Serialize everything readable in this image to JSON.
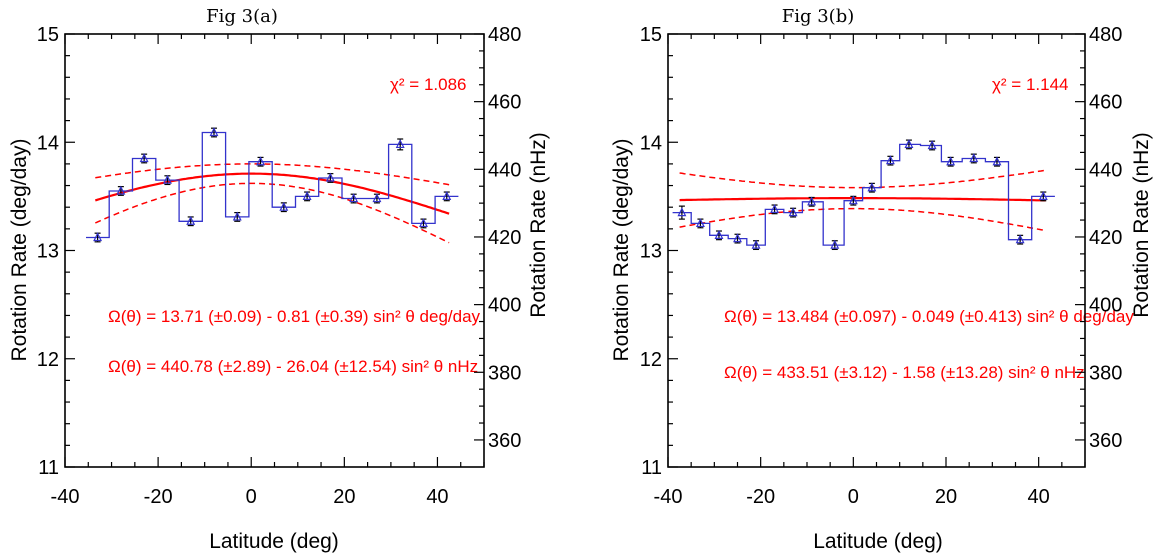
{
  "chart_data": [
    {
      "type": "line",
      "title": "Fig 3(a)",
      "xlabel": "Latitude (deg)",
      "ylabel": "Rotation Rate (deg/day)",
      "ylabel_right": "Rotation Rate (nHz)",
      "xlim": [
        -40,
        50
      ],
      "ylim": [
        11,
        15
      ],
      "ylim_right": [
        352,
        480
      ],
      "x_ticks": [
        -40,
        -20,
        0,
        20,
        40
      ],
      "y_ticks": [
        11,
        12,
        13,
        14,
        15
      ],
      "y_ticks_right": [
        360,
        380,
        400,
        420,
        440,
        460,
        480
      ],
      "x_tick_labels": [
        "-40",
        "-20",
        "0",
        "20",
        "40"
      ],
      "y_tick_labels": [
        "11",
        "12",
        "13",
        "14",
        "15"
      ],
      "y_tick_labels_right": [
        "360",
        "380",
        "400",
        "420",
        "440",
        "460",
        "480"
      ],
      "grid": false,
      "chi2_label": "χ² = 1.086",
      "formula_deg": "Ω(θ) = 13.71 (±0.09) - 0.81 (±0.39) sin² θ   deg/day",
      "formula_nhz": "Ω(θ) = 440.78 (±2.89) - 26.04 (±12.54) sin² θ   nHz",
      "fit": {
        "A": 13.71,
        "B": -0.81,
        "A_err": 0.09,
        "B_err": 0.39
      },
      "series": [
        {
          "x": [
            -33,
            -28,
            -23,
            -18,
            -13,
            -8,
            -3,
            2,
            7,
            12,
            17,
            22,
            27,
            32,
            37,
            42
          ],
          "y": [
            13.12,
            13.55,
            13.85,
            13.65,
            13.27,
            14.09,
            13.31,
            13.82,
            13.4,
            13.5,
            13.67,
            13.48,
            13.48,
            13.98,
            13.25,
            13.5
          ],
          "err": [
            0.04,
            0.04,
            0.04,
            0.04,
            0.04,
            0.04,
            0.04,
            0.04,
            0.04,
            0.04,
            0.04,
            0.04,
            0.04,
            0.05,
            0.04,
            0.04
          ],
          "color": "#3333cc"
        }
      ],
      "fit_color": "#ff0000"
    },
    {
      "type": "line",
      "title": "Fig 3(b)",
      "xlabel": "Latitude (deg)",
      "ylabel": "Rotation Rate (deg/day)",
      "ylabel_right": "Rotation Rate (nHz)",
      "xlim": [
        -40,
        50
      ],
      "ylim": [
        11,
        15
      ],
      "ylim_right": [
        352,
        480
      ],
      "x_ticks": [
        -40,
        -20,
        0,
        20,
        40
      ],
      "y_ticks": [
        11,
        12,
        13,
        14,
        15
      ],
      "y_ticks_right": [
        360,
        380,
        400,
        420,
        440,
        460,
        480
      ],
      "x_tick_labels": [
        "-40",
        "-20",
        "0",
        "20",
        "40"
      ],
      "y_tick_labels": [
        "11",
        "12",
        "13",
        "14",
        "15"
      ],
      "y_tick_labels_right": [
        "360",
        "380",
        "400",
        "420",
        "440",
        "460",
        "480"
      ],
      "grid": false,
      "chi2_label": "χ² = 1.144",
      "formula_deg": "Ω(θ) = 13.484 (±0.097) - 0.049 (±0.413) sin² θ  deg/day",
      "formula_nhz": "Ω(θ) = 433.51 (±3.12) - 1.58 (±13.28) sin² θ  nHz",
      "fit": {
        "A": 13.484,
        "B": -0.049,
        "A_err": 0.097,
        "B_err": 0.413
      },
      "series": [
        {
          "x": [
            -37,
            -33,
            -29,
            -25,
            -21,
            -17,
            -13,
            -9,
            -4,
            0,
            4,
            8,
            12,
            17,
            21,
            26,
            31,
            36,
            41
          ],
          "y": [
            13.35,
            13.25,
            13.14,
            13.11,
            13.05,
            13.38,
            13.35,
            13.45,
            13.05,
            13.46,
            13.58,
            13.83,
            13.98,
            13.97,
            13.82,
            13.85,
            13.82,
            13.1,
            13.5
          ],
          "err": [
            0.06,
            0.04,
            0.04,
            0.04,
            0.04,
            0.04,
            0.04,
            0.04,
            0.04,
            0.04,
            0.04,
            0.04,
            0.04,
            0.04,
            0.04,
            0.04,
            0.04,
            0.04,
            0.04
          ],
          "color": "#3333cc"
        }
      ],
      "fit_color": "#ff0000"
    }
  ]
}
